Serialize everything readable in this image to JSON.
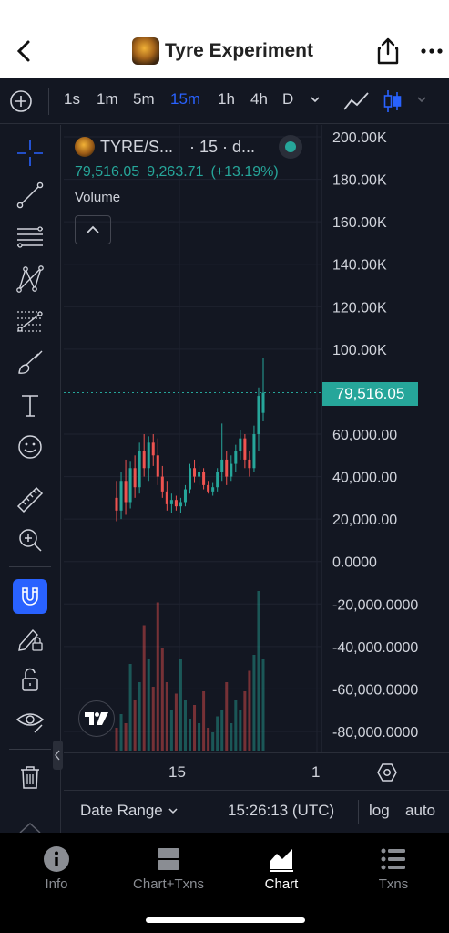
{
  "header": {
    "title": "Tyre Experiment",
    "back_icon": "chevron-left-icon",
    "share_icon": "share-icon",
    "more_icon": "more-horizontal-icon"
  },
  "timeframes": {
    "items": [
      "1s",
      "1m",
      "5m",
      "15m",
      "1h",
      "4h",
      "D"
    ],
    "active": "15m",
    "chart_types": [
      "line-chart-icon",
      "candlestick-icon"
    ]
  },
  "tools": [
    "crosshair-icon",
    "trend-line-icon",
    "horizontal-lines-icon",
    "pattern-icon",
    "fib-icon",
    "brush-icon",
    "text-icon",
    "emoji-icon",
    "ruler-icon",
    "zoom-in-icon",
    "magnet-icon",
    "lock-drawing-icon",
    "lock-icon",
    "eye-icon",
    "trash-icon"
  ],
  "legend": {
    "symbol": "TYRE/S...",
    "interval": "· 15 · d...",
    "last_price": "79,516.05",
    "change": "9,263.71",
    "change_pct": "(+13.19%)",
    "volume_label": "Volume"
  },
  "price_axis": {
    "labels": [
      "200.00K",
      "180.00K",
      "160.00K",
      "140.00K",
      "120.00K",
      "100.00K",
      "60,000.00",
      "40,000.00",
      "20,000.00",
      "0.0000",
      "-20,000.0000",
      "-40,000.0000",
      "-60,000.0000",
      "-80,000.0000"
    ],
    "current_price": "79,516.05"
  },
  "time_axis": {
    "labels": [
      "15",
      "1"
    ]
  },
  "controls": {
    "date_range": "Date Range",
    "time": "15:26:13 (UTC)",
    "log": "log",
    "auto": "auto"
  },
  "tabbar": {
    "tabs": [
      {
        "label": "Info",
        "icon": "info-icon"
      },
      {
        "label": "Chart+Txns",
        "icon": "split-view-icon"
      },
      {
        "label": "Chart",
        "icon": "area-chart-icon"
      },
      {
        "label": "Txns",
        "icon": "list-icon"
      }
    ],
    "active": "Chart"
  },
  "colors": {
    "up": "#26a69a",
    "down": "#ef5350",
    "accent": "#2962ff",
    "background": "#131722"
  },
  "chart_data": {
    "type": "candlestick",
    "xlabel": "",
    "ylabel": "",
    "ylim": [
      -80000,
      200000
    ],
    "x_ticks": [
      "15",
      "1"
    ],
    "last_price": 79516.05,
    "candles": [
      {
        "o": 30000,
        "h": 38000,
        "l": 19000,
        "c": 24000
      },
      {
        "o": 24000,
        "h": 42000,
        "l": 20000,
        "c": 38000
      },
      {
        "o": 38000,
        "h": 48000,
        "l": 22000,
        "c": 28000
      },
      {
        "o": 28000,
        "h": 47000,
        "l": 25000,
        "c": 44000
      },
      {
        "o": 44000,
        "h": 50000,
        "l": 30000,
        "c": 35000
      },
      {
        "o": 35000,
        "h": 56000,
        "l": 32000,
        "c": 52000
      },
      {
        "o": 52000,
        "h": 60000,
        "l": 40000,
        "c": 44000
      },
      {
        "o": 44000,
        "h": 59000,
        "l": 38000,
        "c": 56000
      },
      {
        "o": 56000,
        "h": 60000,
        "l": 45000,
        "c": 50000
      },
      {
        "o": 50000,
        "h": 58000,
        "l": 36000,
        "c": 40000
      },
      {
        "o": 40000,
        "h": 45000,
        "l": 30000,
        "c": 33000
      },
      {
        "o": 33000,
        "h": 38000,
        "l": 24000,
        "c": 27000
      },
      {
        "o": 27000,
        "h": 32000,
        "l": 23000,
        "c": 29000
      },
      {
        "o": 29000,
        "h": 31000,
        "l": 24000,
        "c": 26000
      },
      {
        "o": 26000,
        "h": 30000,
        "l": 23000,
        "c": 28000
      },
      {
        "o": 28000,
        "h": 36000,
        "l": 26000,
        "c": 34000
      },
      {
        "o": 34000,
        "h": 46000,
        "l": 32000,
        "c": 44000
      },
      {
        "o": 44000,
        "h": 48000,
        "l": 37000,
        "c": 40000
      },
      {
        "o": 40000,
        "h": 45000,
        "l": 36000,
        "c": 42000
      },
      {
        "o": 42000,
        "h": 44000,
        "l": 34000,
        "c": 36000
      },
      {
        "o": 36000,
        "h": 38000,
        "l": 32000,
        "c": 33000
      },
      {
        "o": 33000,
        "h": 37000,
        "l": 31000,
        "c": 35000
      },
      {
        "o": 35000,
        "h": 44000,
        "l": 33000,
        "c": 42000
      },
      {
        "o": 42000,
        "h": 65000,
        "l": 38000,
        "c": 48000
      },
      {
        "o": 48000,
        "h": 52000,
        "l": 36000,
        "c": 40000
      },
      {
        "o": 40000,
        "h": 50000,
        "l": 38000,
        "c": 46000
      },
      {
        "o": 46000,
        "h": 55000,
        "l": 42000,
        "c": 52000
      },
      {
        "o": 52000,
        "h": 62000,
        "l": 48000,
        "c": 58000
      },
      {
        "o": 58000,
        "h": 60000,
        "l": 44000,
        "c": 48000
      },
      {
        "o": 48000,
        "h": 52000,
        "l": 40000,
        "c": 44000
      },
      {
        "o": 44000,
        "h": 64000,
        "l": 42000,
        "c": 60000
      },
      {
        "o": 60000,
        "h": 82000,
        "l": 52000,
        "c": 78000
      },
      {
        "o": 70000,
        "h": 96000,
        "l": 66000,
        "c": 79516
      }
    ],
    "volume": [
      10,
      16,
      12,
      38,
      22,
      30,
      55,
      40,
      28,
      65,
      45,
      30,
      18,
      25,
      40,
      22,
      14,
      20,
      12,
      26,
      10,
      8,
      15,
      18,
      30,
      12,
      22,
      18,
      26,
      35,
      42,
      70,
      40
    ]
  }
}
